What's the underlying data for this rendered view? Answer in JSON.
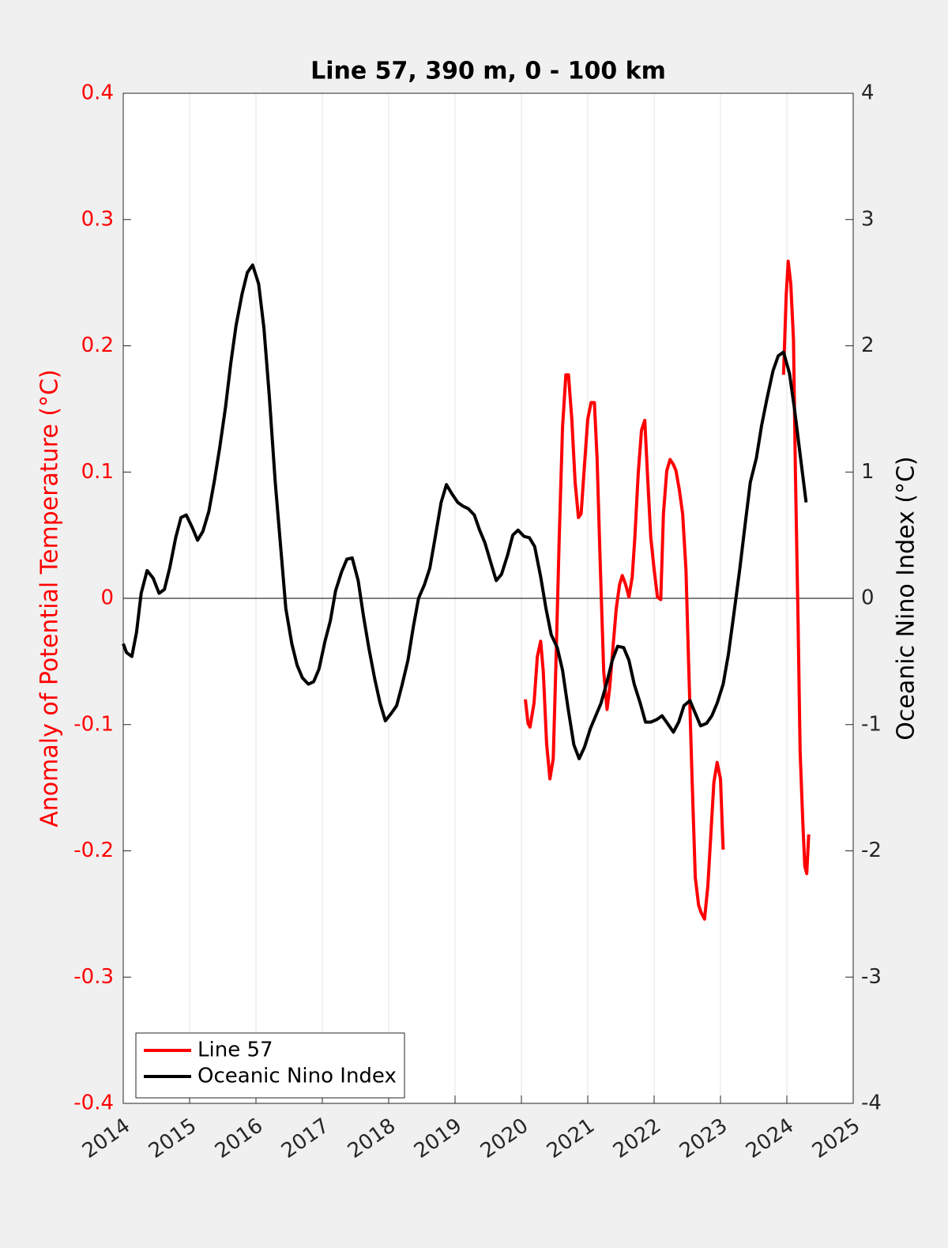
{
  "chart_data": {
    "type": "line",
    "title": "Line 57, 390 m, 0 - 100 km",
    "ylabel": "Anomaly of Potential Temperature (°C)",
    "y2label": "Oceanic Nino Index (°C)",
    "xlim": [
      2014,
      2025
    ],
    "xticks": [
      2014,
      2015,
      2016,
      2017,
      2018,
      2019,
      2020,
      2021,
      2022,
      2023,
      2024,
      2025
    ],
    "ylim": [
      -0.4,
      0.4
    ],
    "yticks": [
      -0.4,
      -0.3,
      -0.2,
      -0.1,
      0,
      0.1,
      0.2,
      0.3,
      0.4
    ],
    "y2lim": [
      -4,
      4
    ],
    "y2ticks": [
      -4,
      -3,
      -2,
      -1,
      0,
      1,
      2,
      3,
      4
    ],
    "xgrid": true,
    "legend": "lower left",
    "series": [
      {
        "name": "Line 57",
        "color": "#ff0000",
        "axis": "y",
        "x": [
          2020.06,
          2020.1,
          2020.13,
          2020.19,
          2020.24,
          2020.29,
          2020.33,
          2020.38,
          2020.43,
          2020.48,
          2020.52,
          2020.57,
          2020.62,
          2020.67,
          2020.71,
          2020.76,
          2020.81,
          2020.86,
          2020.9,
          2020.95,
          2021.0,
          2021.05,
          2021.1,
          2021.14,
          2021.19,
          2021.24,
          2021.29,
          2021.33,
          2021.38,
          2021.43,
          2021.48,
          2021.52,
          2021.57,
          2021.62,
          2021.67,
          2021.71,
          2021.76,
          2021.81,
          2021.86,
          2021.9,
          2021.95,
          2022.0,
          2022.05,
          2022.1,
          2022.14,
          2022.19,
          2022.24,
          2022.29,
          2022.33,
          2022.38,
          2022.43,
          2022.48,
          2022.52,
          2022.57,
          2022.62,
          2022.67,
          2022.71,
          2022.76,
          2022.81,
          2022.86,
          2022.9,
          2022.95,
          2023.0,
          2023.04,
          2023.5,
          2023.95,
          2023.99,
          2024.02,
          2024.06,
          2024.1,
          2024.13,
          2024.17,
          2024.2,
          2024.24,
          2024.27,
          2024.3,
          2024.33
        ],
        "values": [
          -0.08,
          -0.099,
          -0.102,
          -0.083,
          -0.046,
          -0.034,
          -0.058,
          -0.115,
          -0.143,
          -0.127,
          -0.052,
          0.048,
          0.136,
          0.177,
          0.177,
          0.142,
          0.092,
          0.064,
          0.067,
          0.105,
          0.142,
          0.155,
          0.155,
          0.111,
          0.023,
          -0.058,
          -0.088,
          -0.071,
          -0.039,
          -0.008,
          0.011,
          0.018,
          0.011,
          0.001,
          0.017,
          0.048,
          0.098,
          0.133,
          0.141,
          0.098,
          0.048,
          0.023,
          0.001,
          -0.001,
          0.067,
          0.101,
          0.11,
          0.106,
          0.101,
          0.086,
          0.067,
          0.023,
          -0.052,
          -0.14,
          -0.221,
          -0.243,
          -0.249,
          -0.254,
          -0.228,
          -0.183,
          -0.146,
          -0.13,
          -0.143,
          -0.199,
          null,
          0.177,
          0.24,
          0.267,
          0.249,
          0.205,
          0.098,
          -0.021,
          -0.121,
          -0.177,
          -0.212,
          -0.218,
          -0.187
        ]
      },
      {
        "name": "Oceanic Nino Index",
        "color": "#000000",
        "axis": "y2",
        "x": [
          2014.0,
          2014.05,
          2014.13,
          2014.2,
          2014.27,
          2014.36,
          2014.45,
          2014.54,
          2014.62,
          2014.7,
          2014.79,
          2014.87,
          2014.95,
          2015.04,
          2015.12,
          2015.2,
          2015.29,
          2015.37,
          2015.45,
          2015.54,
          2015.62,
          2015.7,
          2015.79,
          2015.87,
          2015.95,
          2016.04,
          2016.12,
          2016.2,
          2016.29,
          2016.37,
          2016.45,
          2016.54,
          2016.62,
          2016.7,
          2016.79,
          2016.87,
          2016.95,
          2017.04,
          2017.12,
          2017.2,
          2017.29,
          2017.37,
          2017.45,
          2017.54,
          2017.62,
          2017.7,
          2017.79,
          2017.87,
          2017.95,
          2018.04,
          2018.12,
          2018.2,
          2018.29,
          2018.37,
          2018.45,
          2018.54,
          2018.62,
          2018.7,
          2018.79,
          2018.87,
          2018.95,
          2019.04,
          2019.12,
          2019.2,
          2019.29,
          2019.37,
          2019.45,
          2019.54,
          2019.62,
          2019.7,
          2019.79,
          2019.87,
          2019.95,
          2020.04,
          2020.12,
          2020.2,
          2020.29,
          2020.37,
          2020.45,
          2020.54,
          2020.62,
          2020.7,
          2020.79,
          2020.87,
          2020.95,
          2021.04,
          2021.12,
          2021.2,
          2021.29,
          2021.37,
          2021.45,
          2021.54,
          2021.62,
          2021.7,
          2021.79,
          2021.87,
          2021.95,
          2022.04,
          2022.12,
          2022.2,
          2022.29,
          2022.37,
          2022.45,
          2022.54,
          2022.62,
          2022.7,
          2022.79,
          2022.87,
          2022.95,
          2023.04,
          2023.12,
          2023.2,
          2023.29,
          2023.37,
          2023.45,
          2023.54,
          2023.62,
          2023.7,
          2023.79,
          2023.87,
          2023.95,
          2024.04,
          2024.12,
          2024.2,
          2024.29
        ],
        "values": [
          -0.36,
          -0.43,
          -0.46,
          -0.27,
          0.04,
          0.22,
          0.16,
          0.04,
          0.07,
          0.24,
          0.48,
          0.64,
          0.66,
          0.56,
          0.46,
          0.53,
          0.69,
          0.92,
          1.18,
          1.51,
          1.86,
          2.16,
          2.41,
          2.58,
          2.64,
          2.49,
          2.14,
          1.61,
          0.92,
          0.42,
          -0.08,
          -0.36,
          -0.53,
          -0.63,
          -0.68,
          -0.66,
          -0.56,
          -0.34,
          -0.18,
          0.06,
          0.21,
          0.31,
          0.32,
          0.14,
          -0.14,
          -0.39,
          -0.64,
          -0.83,
          -0.97,
          -0.91,
          -0.85,
          -0.69,
          -0.49,
          -0.23,
          0,
          0.11,
          0.24,
          0.48,
          0.76,
          0.9,
          0.83,
          0.76,
          0.73,
          0.71,
          0.66,
          0.54,
          0.44,
          0.28,
          0.14,
          0.19,
          0.34,
          0.5,
          0.54,
          0.49,
          0.48,
          0.41,
          0.17,
          -0.08,
          -0.29,
          -0.39,
          -0.57,
          -0.86,
          -1.16,
          -1.27,
          -1.18,
          -1.03,
          -0.93,
          -0.83,
          -0.66,
          -0.49,
          -0.38,
          -0.39,
          -0.49,
          -0.68,
          -0.83,
          -0.98,
          -0.98,
          -0.96,
          -0.93,
          -0.99,
          -1.06,
          -0.98,
          -0.85,
          -0.81,
          -0.91,
          -1.01,
          -0.99,
          -0.93,
          -0.83,
          -0.68,
          -0.44,
          -0.13,
          0.23,
          0.58,
          0.92,
          1.11,
          1.37,
          1.58,
          1.8,
          1.92,
          1.95,
          1.78,
          1.48,
          1.14,
          0.76
        ]
      }
    ]
  }
}
